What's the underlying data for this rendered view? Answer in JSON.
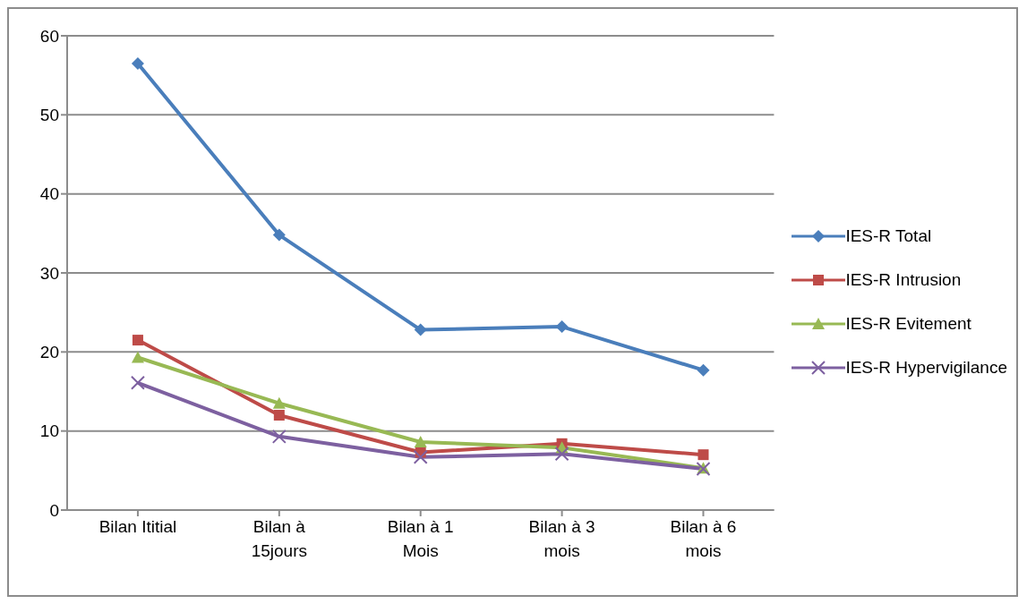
{
  "chart_data": {
    "type": "line",
    "categories": [
      "Bilan Ititial",
      "Bilan à 15jours",
      "Bilan à 1 Mois",
      "Bilan à 3 mois",
      "Bilan à 6 mois"
    ],
    "series": [
      {
        "name": "IES-R Total",
        "color": "#4a7ebb",
        "marker": "diamond",
        "values": [
          56.5,
          34.8,
          22.8,
          23.2,
          17.7
        ]
      },
      {
        "name": "IES-R Intrusion",
        "color": "#be4b48",
        "marker": "square",
        "values": [
          21.5,
          12.0,
          7.3,
          8.4,
          7.0
        ]
      },
      {
        "name": "IES-R Evitement",
        "color": "#98b954",
        "marker": "triangle",
        "values": [
          19.3,
          13.5,
          8.6,
          7.9,
          5.3
        ]
      },
      {
        "name": "IES-R Hypervigilance",
        "color": "#7d60a0",
        "marker": "cross",
        "values": [
          16.1,
          9.3,
          6.7,
          7.1,
          5.2
        ]
      }
    ],
    "ylim": [
      0,
      60
    ],
    "yticks": [
      0,
      10,
      20,
      30,
      40,
      50,
      60
    ],
    "grid": "y",
    "legend": "right",
    "line_style": "solid"
  }
}
